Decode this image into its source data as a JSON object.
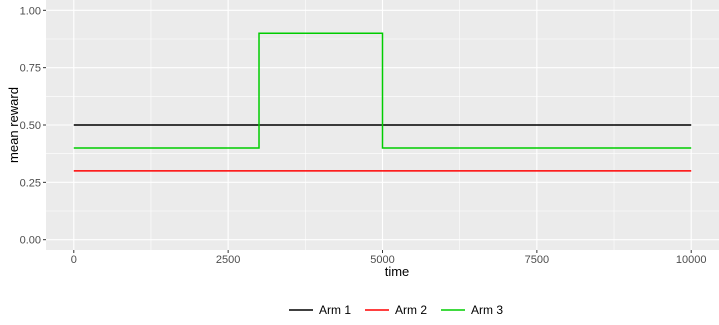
{
  "chart_data": {
    "type": "line",
    "step": true,
    "xlabel": "time",
    "ylabel": "mean reward",
    "xlim": [
      -450,
      10450
    ],
    "ylim": [
      -0.045,
      1.045
    ],
    "x_ticks": [
      0,
      2500,
      5000,
      7500,
      10000
    ],
    "x_tick_labels": [
      "0",
      "2500",
      "5000",
      "7500",
      "10000"
    ],
    "y_ticks": [
      0,
      0.25,
      0.5,
      0.75,
      1.0
    ],
    "y_tick_labels": [
      "0.00",
      "0.25",
      "0.50",
      "0.75",
      "1.00"
    ],
    "grid": true,
    "legend_position": "bottom",
    "series": [
      {
        "name": "Arm 1",
        "color": "#000000",
        "x": [
          0,
          10000
        ],
        "y": [
          0.5,
          0.5
        ]
      },
      {
        "name": "Arm 2",
        "color": "#ff0000",
        "x": [
          0,
          10000
        ],
        "y": [
          0.3,
          0.3
        ]
      },
      {
        "name": "Arm 3",
        "color": "#00cd00",
        "x": [
          0,
          3000,
          3000,
          5000,
          5000,
          10000
        ],
        "y": [
          0.4,
          0.4,
          0.9,
          0.9,
          0.4,
          0.4
        ]
      }
    ]
  }
}
